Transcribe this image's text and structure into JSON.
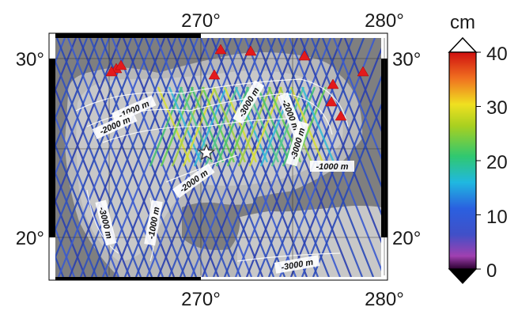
{
  "map": {
    "x_ticks": [
      "270°",
      "280°"
    ],
    "y_ticks_left": [
      "30°",
      "20°"
    ],
    "y_ticks_right": [
      "30°",
      "20°"
    ],
    "contour_labels": [
      {
        "text": "-1000 m"
      },
      {
        "text": "-2000 m"
      },
      {
        "text": "-3000 m"
      },
      {
        "text": "-2000 m"
      },
      {
        "text": "-3000 m"
      },
      {
        "text": "-1000 m"
      },
      {
        "text": "-2000 m"
      },
      {
        "text": "-3000 m"
      },
      {
        "text": "-1000 m"
      },
      {
        "text": "-3000 m"
      }
    ],
    "colors": {
      "land": "#7f7f7f",
      "shelf": "#b8b8b8",
      "track": "#2a3fb0",
      "marker": "#e31a1c"
    },
    "markers": "red triangles along northern and eastern coast",
    "star": "white star marker"
  },
  "colorbar": {
    "unit": "cm",
    "ticks": [
      "40",
      "30",
      "20",
      "10",
      "0"
    ],
    "range": [
      0,
      40
    ]
  }
}
